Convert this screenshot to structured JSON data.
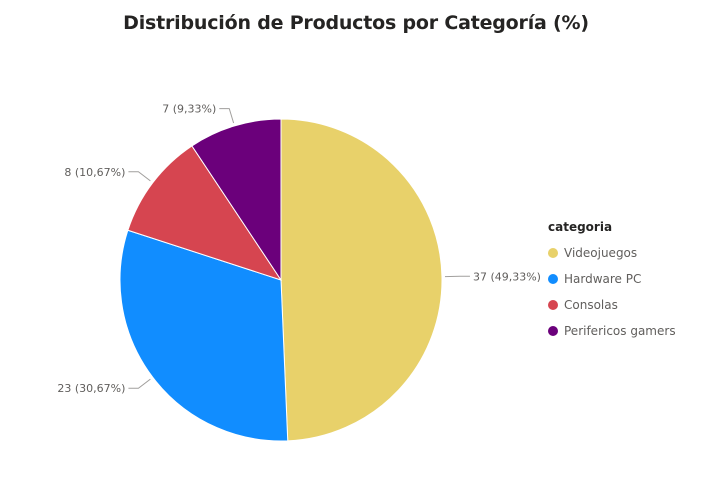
{
  "chart_data": {
    "type": "pie",
    "title": "Distribución de Productos por Categoría (%)",
    "legend_title": "categoria",
    "legend_position": "right",
    "slices": [
      {
        "name": "Videojuegos",
        "value": 37,
        "label": "37 (49,33%)",
        "color": "#E8D16A"
      },
      {
        "name": "Hardware PC",
        "value": 23,
        "label": "23 (30,67%)",
        "color": "#118DFF"
      },
      {
        "name": "Consolas",
        "value": 8,
        "label": "8 (10,67%)",
        "color": "#D64550"
      },
      {
        "name": "Perifericos gamers",
        "value": 7,
        "label": "7 (9,33%)",
        "color": "#6B007B"
      }
    ]
  }
}
